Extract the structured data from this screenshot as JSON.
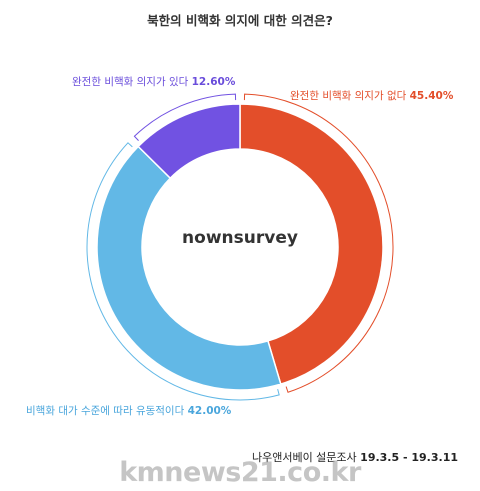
{
  "chart_data": {
    "type": "pie",
    "donut": true,
    "title": "북한의 비핵화 의지에 대한 의견은?",
    "center_text": "nownsurvey",
    "slices": [
      {
        "label": "완전한 비핵화 의지가 없다",
        "value": 45.4,
        "value_text": "45.40%",
        "color": "#e34e2a"
      },
      {
        "label": "비핵화 대가 수준에 따라 유동적이다",
        "value": 42.0,
        "value_text": "42.00%",
        "color": "#62b8e6"
      },
      {
        "label": "완전한 비핵화 의지가 있다",
        "value": 12.6,
        "value_text": "12.60%",
        "color": "#7152e2"
      }
    ],
    "start_angle_deg": 0,
    "direction": "clockwise"
  },
  "source": {
    "text": "나우앤서베이 설문조사",
    "dates": "19.3.5 - 19.3.11"
  },
  "watermark": "kmnews21.co.kr"
}
